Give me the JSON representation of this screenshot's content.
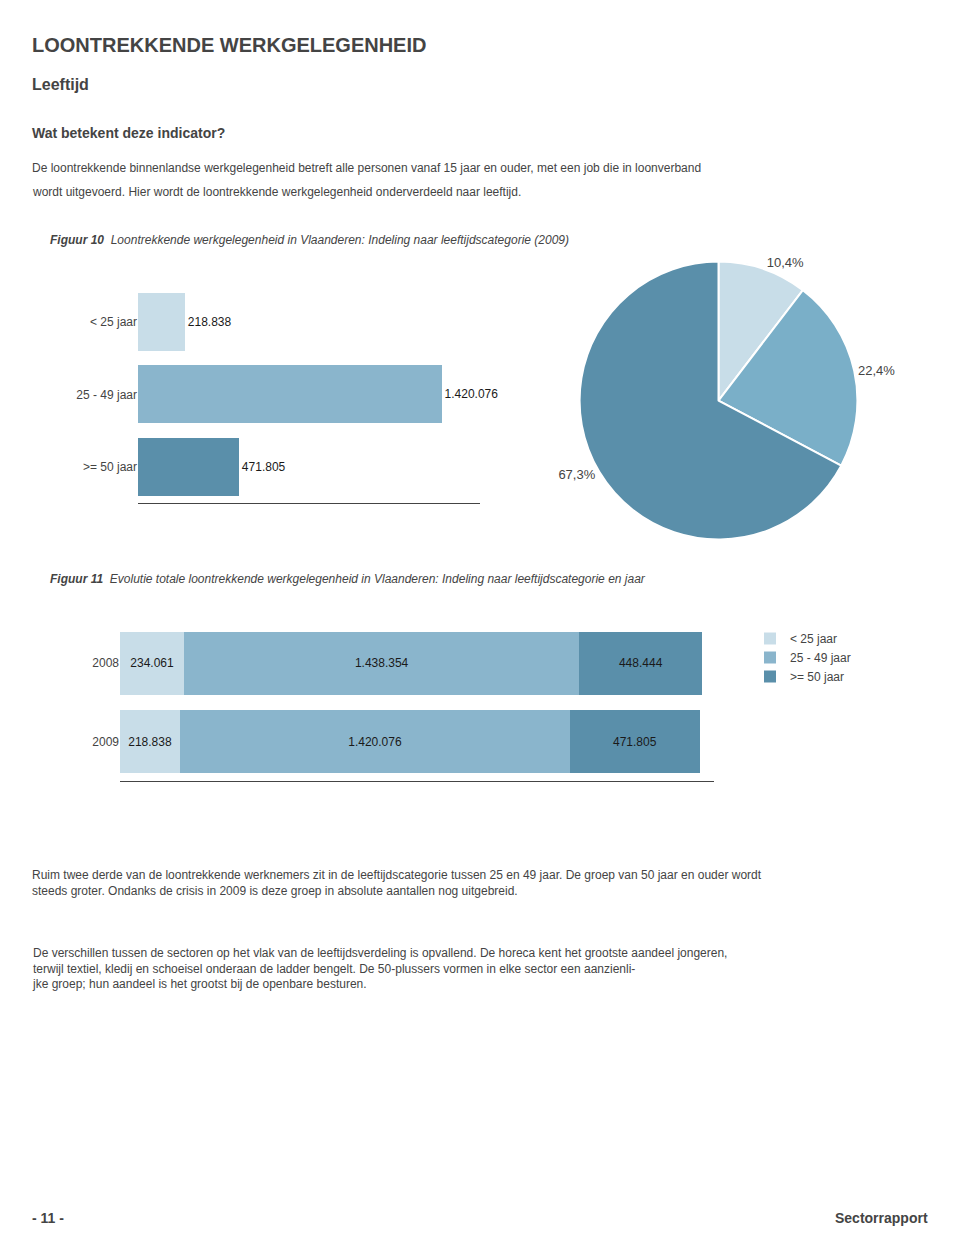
{
  "title": "LOONTREKKENDE WERKGELEGENHEID",
  "subtitle": "Leeftijd",
  "annotations": [
    "Wat betekent deze indicator?",
    "De loontrekkende binnenlandse werkgelegenheid betreft alle personen vanaf 15 jaar en ouder, met een job die in loonverband",
    "wordt uitgevoerd. Hier wordt de loontrekkende werkgelegenheid onderverdeeld naar leeftijd.",
    "Ruim twee derde van de loontrekkende werknemers zit in de leeftijdscategorie tussen 25 en 49 jaar. De groep van 50 jaar en ouder wordt steeds groter. Ondanks de crisis in 2009 is deze groep in absolute aantallen nog uitgebreid.",
    "De verschillen tussen de sectoren op het vlak van de leeftijdsverdeling is opvallend. De horeca kent het grootste aandeel jongeren, terwijl textiel, kledij en schoeisel onderaan de ladder bengelt. De 50-plussers vormen in elke sector een aanzienli-\njke groep; hun aandeel is het grootst bij de openbare besturen.",
    "- 11 -",
    "Sectorrapport"
  ],
  "chart_data": [
    {
      "type": "bar",
      "title": "Figuur 10",
      "subtitle": "Loontrekkende werkgelegenheid in Vlaanderen: Indeling naar leeftijdscategorie (2009)",
      "orientation": "horizontal",
      "categories": [
        "< 25 jaar",
        "25 - 49 jaar",
        ">= 50 jaar"
      ],
      "values": [
        218838,
        1420076,
        471805
      ],
      "value_labels": [
        "218.838",
        "1.420.076",
        "471.805"
      ],
      "colors": [
        "#c8dde8",
        "#8ab5cc",
        "#5a8faa"
      ],
      "data_labels": true,
      "tick_labels": "y",
      "grid": false,
      "xlim": [
        0,
        1600000
      ]
    },
    {
      "type": "pie",
      "values": [
        10.4,
        22.4,
        67.3
      ],
      "value_labels": [
        "10,4%",
        "22,4%",
        "67,3%"
      ],
      "colors": [
        "#c8dde8",
        "#7aafc8",
        "#5a8faa"
      ],
      "data_labels": true
    },
    {
      "type": "bar",
      "title": "Figuur 11",
      "subtitle": "Evolutie totale loontrekkende werkgelegenheid in Vlaanderen: Indeling naar leeftijdscategorie en jaar",
      "orientation": "horizontal",
      "stacked": true,
      "categories": [
        "2008",
        "2009"
      ],
      "series": [
        {
          "name": "< 25 jaar",
          "color": "#c8dde8",
          "values": [
            234061,
            218838
          ],
          "value_labels": [
            "234.061",
            "218.838"
          ]
        },
        {
          "name": "25 - 49 jaar",
          "color": "#8ab5cc",
          "values": [
            1438354,
            1420076
          ],
          "value_labels": [
            "1.438.354",
            "1.420.076"
          ]
        },
        {
          "name": ">= 50 jaar",
          "color": "#5a8faa",
          "values": [
            448444,
            471805
          ],
          "value_labels": [
            "448.444",
            "471.805"
          ]
        }
      ],
      "data_labels": true,
      "tick_labels": "y",
      "grid": false,
      "legend": "right",
      "xlim": [
        0,
        2163276.18
      ]
    }
  ]
}
